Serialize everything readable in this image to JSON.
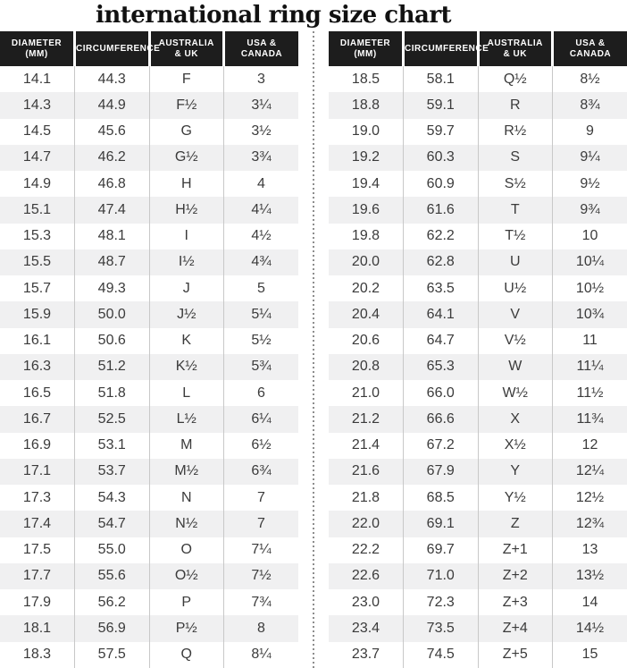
{
  "title": "international ring size chart",
  "colors": {
    "header-bg": "#1d1d1d",
    "header-text": "#ffffff",
    "row-alt-bg": "#f0f0f1",
    "row-text": "#3b3b3b",
    "grid-line": "#c8c8c8",
    "divider-dot": "#8d8d8d"
  },
  "chart_data": [
    {
      "type": "table",
      "name": "left",
      "columns": [
        "DIAMETER (mm)",
        "CIRCUMFERENCE",
        "AUSTRALIA & UK",
        "USA & CANADA"
      ],
      "column_lines": [
        [
          "DIAMETER",
          "(mm)"
        ],
        [
          "CIRCUMFERENCE"
        ],
        [
          "AUSTRALIA",
          "& UK"
        ],
        [
          "USA &",
          "CANADA"
        ]
      ],
      "rows": [
        [
          "14.1",
          "44.3",
          "F",
          "3"
        ],
        [
          "14.3",
          "44.9",
          "F½",
          "3¼"
        ],
        [
          "14.5",
          "45.6",
          "G",
          "3½"
        ],
        [
          "14.7",
          "46.2",
          "G½",
          "3¾"
        ],
        [
          "14.9",
          "46.8",
          "H",
          "4"
        ],
        [
          "15.1",
          "47.4",
          "H½",
          "4¼"
        ],
        [
          "15.3",
          "48.1",
          "I",
          "4½"
        ],
        [
          "15.5",
          "48.7",
          "I½",
          "4¾"
        ],
        [
          "15.7",
          "49.3",
          "J",
          "5"
        ],
        [
          "15.9",
          "50.0",
          "J½",
          "5¼"
        ],
        [
          "16.1",
          "50.6",
          "K",
          "5½"
        ],
        [
          "16.3",
          "51.2",
          "K½",
          "5¾"
        ],
        [
          "16.5",
          "51.8",
          "L",
          "6"
        ],
        [
          "16.7",
          "52.5",
          "L½",
          "6¼"
        ],
        [
          "16.9",
          "53.1",
          "M",
          "6½"
        ],
        [
          "17.1",
          "53.7",
          "M½",
          "6¾"
        ],
        [
          "17.3",
          "54.3",
          "N",
          "7"
        ],
        [
          "17.4",
          "54.7",
          "N½",
          "7"
        ],
        [
          "17.5",
          "55.0",
          "O",
          "7¼"
        ],
        [
          "17.7",
          "55.6",
          "O½",
          "7½"
        ],
        [
          "17.9",
          "56.2",
          "P",
          "7¾"
        ],
        [
          "18.1",
          "56.9",
          "P½",
          "8"
        ],
        [
          "18.3",
          "57.5",
          "Q",
          "8¼"
        ]
      ]
    },
    {
      "type": "table",
      "name": "right",
      "columns": [
        "DIAMETER (mm)",
        "CIRCUMFERENCE",
        "AUSTRALIA & UK",
        "USA & CANADA"
      ],
      "column_lines": [
        [
          "DIAMETER",
          "(mm)"
        ],
        [
          "CIRCUMFERENCE"
        ],
        [
          "AUSTRALIA",
          "& UK"
        ],
        [
          "USA &",
          "CANADA"
        ]
      ],
      "rows": [
        [
          "18.5",
          "58.1",
          "Q½",
          "8½"
        ],
        [
          "18.8",
          "59.1",
          "R",
          "8¾"
        ],
        [
          "19.0",
          "59.7",
          "R½",
          "9"
        ],
        [
          "19.2",
          "60.3",
          "S",
          "9¼"
        ],
        [
          "19.4",
          "60.9",
          "S½",
          "9½"
        ],
        [
          "19.6",
          "61.6",
          "T",
          "9¾"
        ],
        [
          "19.8",
          "62.2",
          "T½",
          "10"
        ],
        [
          "20.0",
          "62.8",
          "U",
          "10¼"
        ],
        [
          "20.2",
          "63.5",
          "U½",
          "10½"
        ],
        [
          "20.4",
          "64.1",
          "V",
          "10¾"
        ],
        [
          "20.6",
          "64.7",
          "V½",
          "11"
        ],
        [
          "20.8",
          "65.3",
          "W",
          "11¼"
        ],
        [
          "21.0",
          "66.0",
          "W½",
          "11½"
        ],
        [
          "21.2",
          "66.6",
          "X",
          "11¾"
        ],
        [
          "21.4",
          "67.2",
          "X½",
          "12"
        ],
        [
          "21.6",
          "67.9",
          "Y",
          "12¼"
        ],
        [
          "21.8",
          "68.5",
          "Y½",
          "12½"
        ],
        [
          "22.0",
          "69.1",
          "Z",
          "12¾"
        ],
        [
          "22.2",
          "69.7",
          "Z+1",
          "13"
        ],
        [
          "22.6",
          "71.0",
          "Z+2",
          "13½"
        ],
        [
          "23.0",
          "72.3",
          "Z+3",
          "14"
        ],
        [
          "23.4",
          "73.5",
          "Z+4",
          "14½"
        ],
        [
          "23.7",
          "74.5",
          "Z+5",
          "15"
        ]
      ]
    }
  ]
}
